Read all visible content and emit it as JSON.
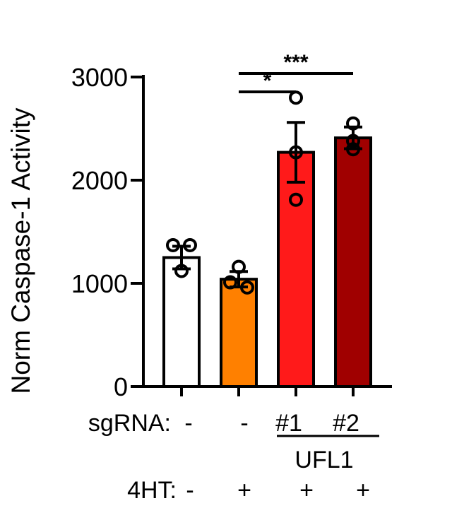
{
  "chart_data": {
    "type": "bar",
    "ylabel": "Norm Caspase-1 Activity",
    "ylim": [
      0,
      3000
    ],
    "yticks": [
      0,
      1000,
      2000,
      3000
    ],
    "categories": [
      "",
      "",
      "",
      ""
    ],
    "values": [
      1250,
      1040,
      2270,
      2410
    ],
    "error": [
      110,
      75,
      290,
      105
    ],
    "points": [
      [
        1370,
        1370,
        1120
      ],
      [
        1160,
        1010,
        960
      ],
      [
        2800,
        2270,
        1810
      ],
      [
        2550,
        2380,
        2300
      ]
    ],
    "bar_colors": [
      "#ffffff",
      "#ff8000",
      "#ff1a1a",
      "#a00000"
    ],
    "rows": [
      {
        "label": "sgRNA:",
        "values": [
          "-",
          "-",
          "#1",
          "#2"
        ]
      },
      {
        "label": "4HT:",
        "values": [
          "-",
          "+",
          "+",
          "+"
        ]
      }
    ],
    "group_label": "UFL1",
    "significance": [
      {
        "from": 1,
        "to": 2,
        "label": "*"
      },
      {
        "from": 1,
        "to": 3,
        "label": "***"
      }
    ]
  }
}
